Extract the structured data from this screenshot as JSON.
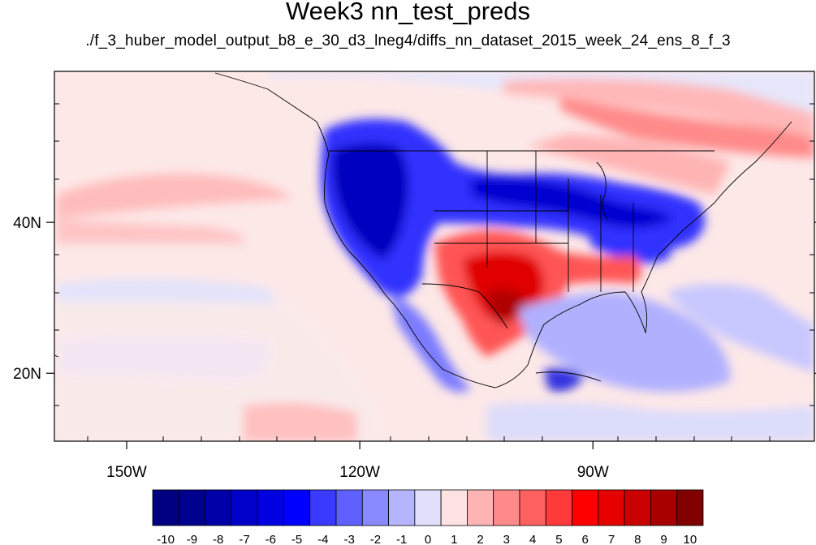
{
  "title": "Week3 nn_test_preds",
  "subtitle": "./f_3_huber_model_output_b8_e_30_d3_lneg4/diffs_nn_dataset_2015_week_24_ens_8_f_3",
  "chart_data": {
    "type": "heatmap",
    "lon_ticks": [
      {
        "value": -150,
        "label": "150W"
      },
      {
        "value": -120,
        "label": "120W"
      },
      {
        "value": -90,
        "label": "90W"
      }
    ],
    "lat_ticks": [
      {
        "value": 20,
        "label": "20N"
      },
      {
        "value": 40,
        "label": "40N"
      }
    ],
    "lon_range": [
      -159.3,
      -61.5
    ],
    "lat_range": [
      11,
      60
    ],
    "colorbar": {
      "labels": [
        "-10",
        "-9",
        "-8",
        "-7",
        "-6",
        "-5",
        "-4",
        "-3",
        "-2",
        "-1",
        "0",
        "1",
        "2",
        "3",
        "4",
        "5",
        "6",
        "7",
        "8",
        "9",
        "10"
      ],
      "colors": [
        "#000080",
        "#00008f",
        "#0000a8",
        "#0000c8",
        "#0000e0",
        "#0000ff",
        "#3a3aff",
        "#6060ff",
        "#8a8aff",
        "#b4b4ff",
        "#e0e0fb",
        "#ffe3e3",
        "#ffb4b4",
        "#ff8a8a",
        "#ff6060",
        "#ff3a3a",
        "#ff0000",
        "#e60000",
        "#c80000",
        "#a80000",
        "#800000"
      ]
    }
  }
}
